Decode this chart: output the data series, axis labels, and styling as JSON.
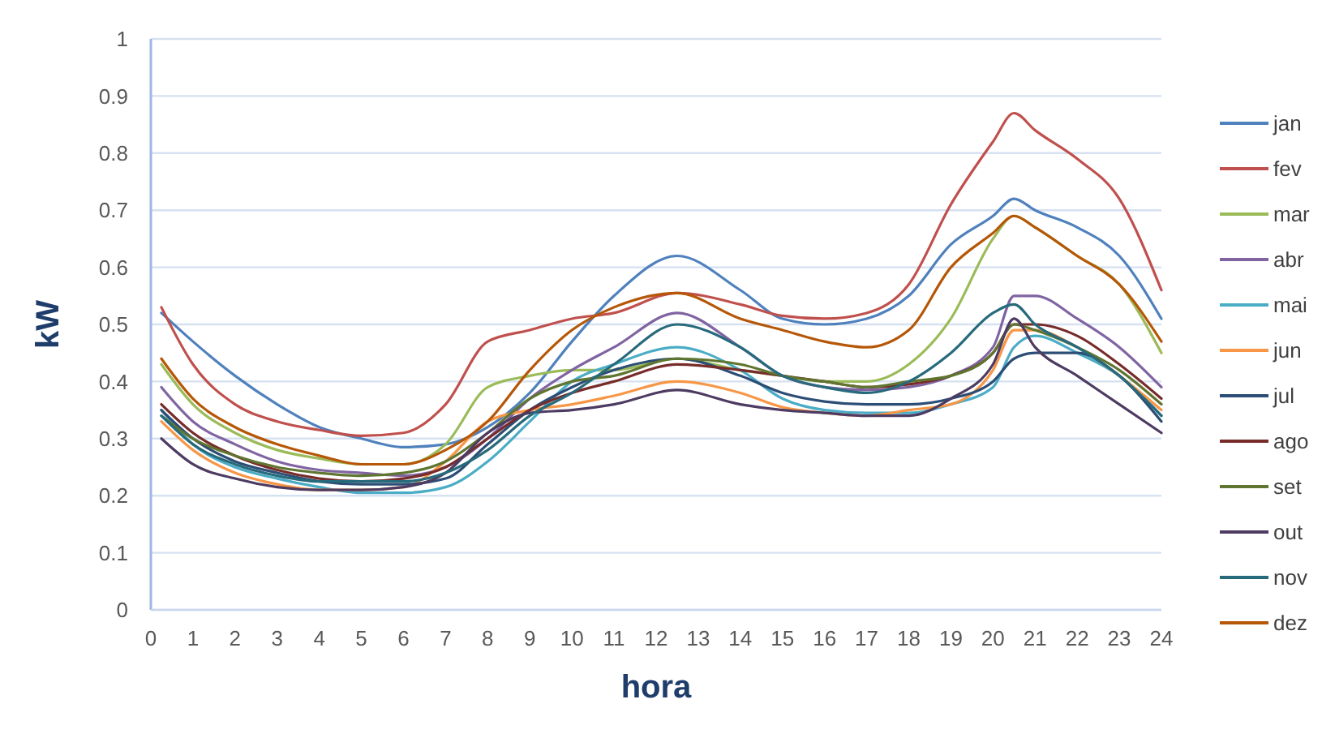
{
  "chart_data": {
    "type": "line",
    "xlabel": "hora",
    "ylabel": "kW",
    "x": [
      0.25,
      1,
      2,
      3,
      4,
      5,
      6,
      7,
      8,
      9,
      10,
      11,
      12.5,
      14,
      15,
      16,
      17,
      18,
      19,
      20,
      20.5,
      21,
      22,
      23,
      24
    ],
    "xlim": [
      0,
      24
    ],
    "xticks": [
      0,
      1,
      2,
      3,
      4,
      5,
      6,
      7,
      8,
      9,
      10,
      11,
      12,
      13,
      14,
      15,
      16,
      17,
      18,
      19,
      20,
      21,
      22,
      23,
      24
    ],
    "ylim": [
      0,
      1
    ],
    "yticks": [
      0,
      0.1,
      0.2,
      0.3,
      0.4,
      0.5,
      0.6,
      0.7,
      0.8,
      0.9,
      1
    ],
    "grid": "y",
    "legend": "right",
    "marker": "none",
    "line_style": "solid",
    "series": [
      {
        "name": "jan",
        "color": "#4f81bd",
        "values": [
          0.52,
          0.47,
          0.41,
          0.36,
          0.32,
          0.3,
          0.285,
          0.29,
          0.32,
          0.38,
          0.47,
          0.55,
          0.62,
          0.56,
          0.51,
          0.5,
          0.51,
          0.55,
          0.64,
          0.69,
          0.72,
          0.7,
          0.67,
          0.62,
          0.51
        ]
      },
      {
        "name": "fev",
        "color": "#c0504d",
        "values": [
          0.53,
          0.43,
          0.36,
          0.33,
          0.315,
          0.305,
          0.31,
          0.36,
          0.47,
          0.49,
          0.51,
          0.52,
          0.555,
          0.535,
          0.515,
          0.51,
          0.52,
          0.57,
          0.71,
          0.82,
          0.87,
          0.84,
          0.79,
          0.72,
          0.56
        ]
      },
      {
        "name": "mar",
        "color": "#9bbb59",
        "values": [
          0.43,
          0.36,
          0.31,
          0.28,
          0.265,
          0.255,
          0.255,
          0.29,
          0.39,
          0.41,
          0.42,
          0.42,
          0.44,
          0.42,
          0.41,
          0.4,
          0.4,
          0.43,
          0.51,
          0.65,
          0.69,
          0.67,
          0.62,
          0.57,
          0.45
        ]
      },
      {
        "name": "abr",
        "color": "#8064a2",
        "values": [
          0.39,
          0.33,
          0.29,
          0.26,
          0.245,
          0.24,
          0.235,
          0.25,
          0.3,
          0.37,
          0.42,
          0.46,
          0.52,
          0.46,
          0.41,
          0.39,
          0.385,
          0.39,
          0.41,
          0.46,
          0.55,
          0.55,
          0.51,
          0.46,
          0.39
        ]
      },
      {
        "name": "mai",
        "color": "#4bacc6",
        "values": [
          0.35,
          0.29,
          0.25,
          0.23,
          0.215,
          0.205,
          0.205,
          0.215,
          0.26,
          0.33,
          0.4,
          0.43,
          0.46,
          0.42,
          0.37,
          0.35,
          0.345,
          0.345,
          0.36,
          0.39,
          0.46,
          0.48,
          0.45,
          0.41,
          0.34
        ]
      },
      {
        "name": "jun",
        "color": "#f79646",
        "values": [
          0.33,
          0.28,
          0.24,
          0.22,
          0.21,
          0.21,
          0.215,
          0.26,
          0.33,
          0.35,
          0.36,
          0.375,
          0.4,
          0.38,
          0.355,
          0.345,
          0.34,
          0.35,
          0.36,
          0.42,
          0.49,
          0.49,
          0.46,
          0.41,
          0.35
        ]
      },
      {
        "name": "jul",
        "color": "#2c4d75",
        "values": [
          0.35,
          0.3,
          0.26,
          0.24,
          0.225,
          0.22,
          0.22,
          0.23,
          0.29,
          0.35,
          0.39,
          0.42,
          0.44,
          0.41,
          0.38,
          0.365,
          0.36,
          0.36,
          0.37,
          0.4,
          0.44,
          0.45,
          0.45,
          0.41,
          0.33
        ]
      },
      {
        "name": "ago",
        "color": "#772c2a",
        "values": [
          0.36,
          0.31,
          0.27,
          0.245,
          0.23,
          0.225,
          0.23,
          0.25,
          0.3,
          0.35,
          0.38,
          0.4,
          0.43,
          0.42,
          0.41,
          0.4,
          0.39,
          0.395,
          0.41,
          0.45,
          0.5,
          0.5,
          0.48,
          0.43,
          0.37
        ]
      },
      {
        "name": "set",
        "color": "#5f7530",
        "values": [
          0.34,
          0.3,
          0.27,
          0.25,
          0.24,
          0.235,
          0.24,
          0.26,
          0.31,
          0.37,
          0.4,
          0.41,
          0.44,
          0.43,
          0.41,
          0.4,
          0.39,
          0.4,
          0.41,
          0.45,
          0.5,
          0.49,
          0.46,
          0.42,
          0.36
        ]
      },
      {
        "name": "out",
        "color": "#4d3b62",
        "values": [
          0.3,
          0.255,
          0.23,
          0.215,
          0.21,
          0.21,
          0.215,
          0.24,
          0.31,
          0.345,
          0.35,
          0.36,
          0.385,
          0.36,
          0.35,
          0.345,
          0.34,
          0.34,
          0.37,
          0.43,
          0.51,
          0.46,
          0.41,
          0.36,
          0.31
        ]
      },
      {
        "name": "nov",
        "color": "#276a7c",
        "values": [
          0.34,
          0.29,
          0.255,
          0.235,
          0.225,
          0.225,
          0.225,
          0.24,
          0.28,
          0.34,
          0.38,
          0.43,
          0.5,
          0.46,
          0.41,
          0.39,
          0.38,
          0.4,
          0.45,
          0.52,
          0.535,
          0.5,
          0.46,
          0.41,
          0.34
        ]
      },
      {
        "name": "dez",
        "color": "#b65708",
        "values": [
          0.44,
          0.37,
          0.32,
          0.29,
          0.27,
          0.255,
          0.255,
          0.28,
          0.33,
          0.42,
          0.49,
          0.53,
          0.555,
          0.51,
          0.49,
          0.47,
          0.46,
          0.49,
          0.6,
          0.66,
          0.69,
          0.67,
          0.62,
          0.57,
          0.47
        ]
      }
    ]
  }
}
